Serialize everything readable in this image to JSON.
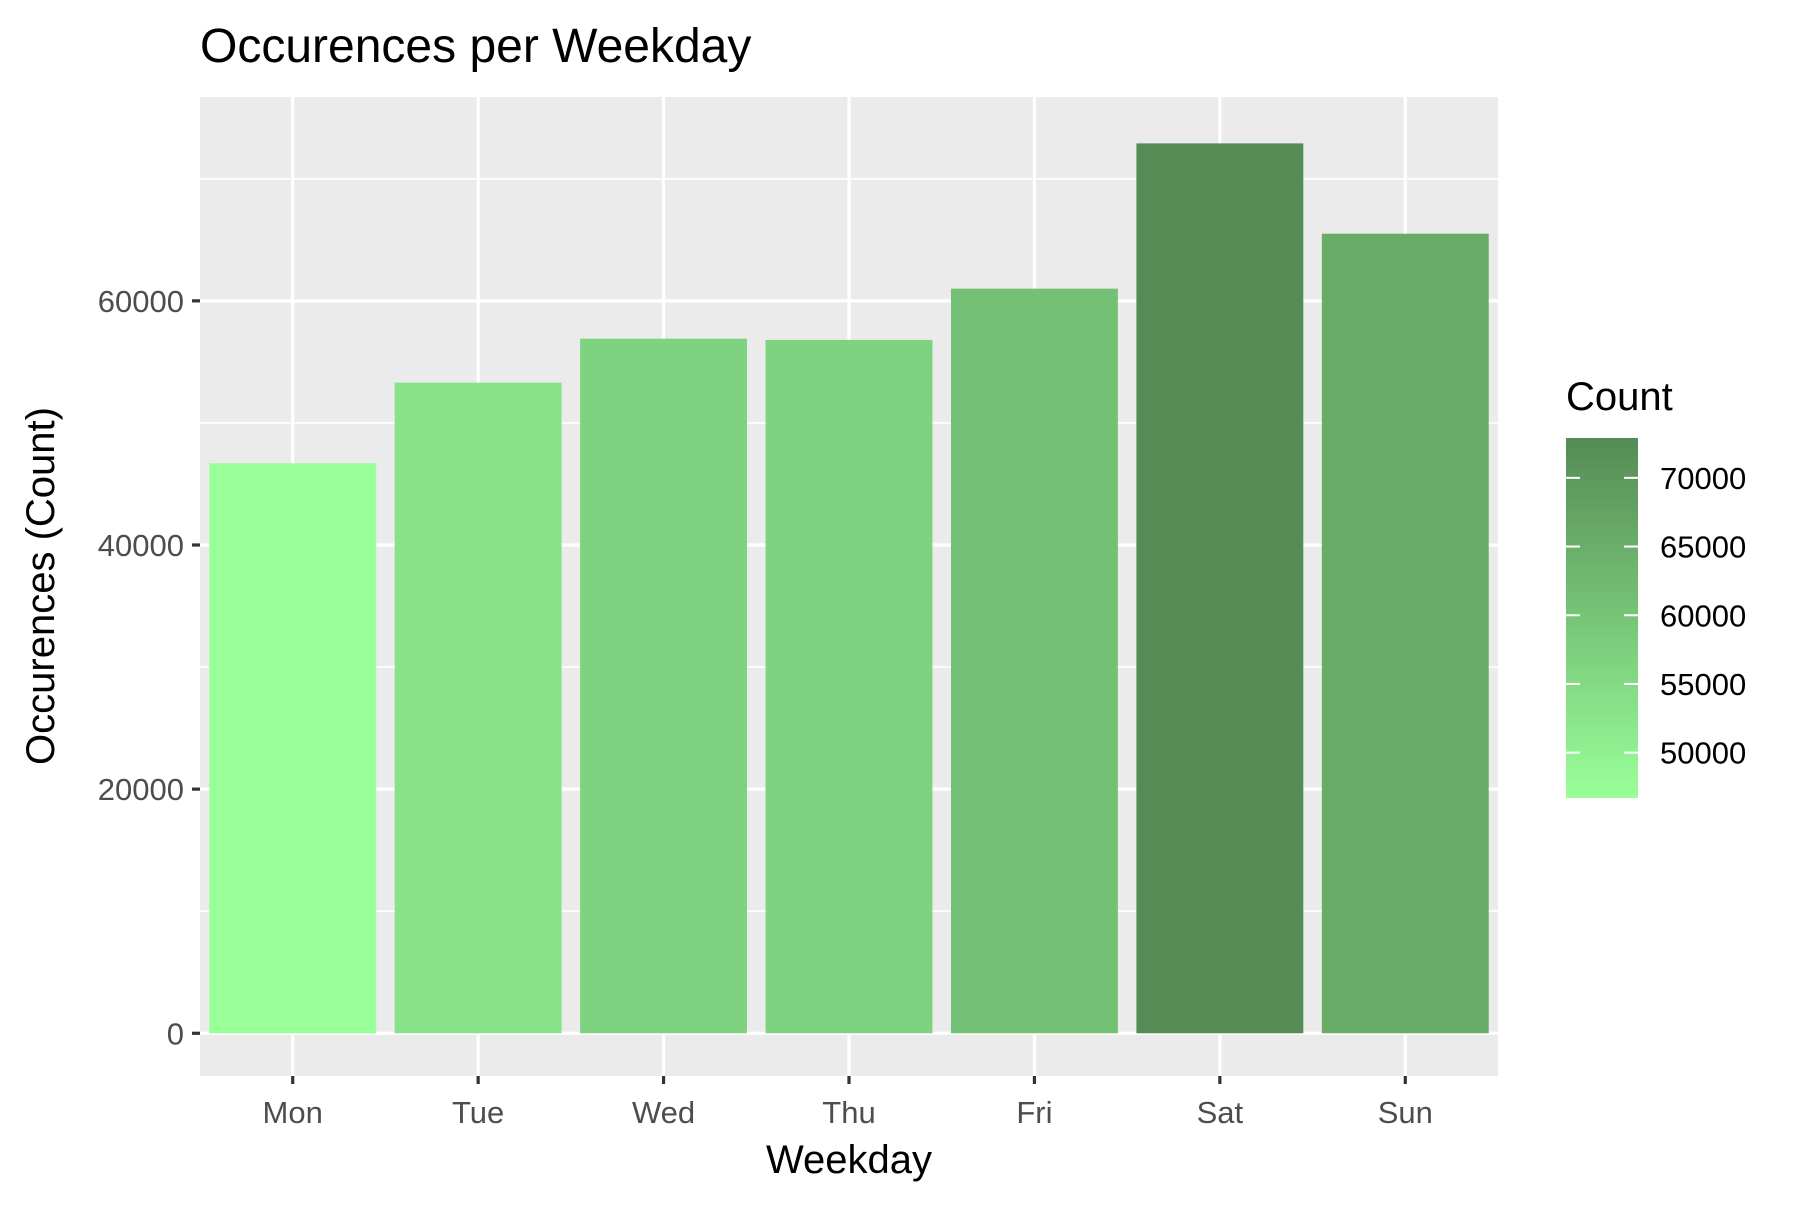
{
  "chart_data": {
    "type": "bar",
    "title": "Occurences per Weekday",
    "xlabel": "Weekday",
    "ylabel": "Occurences (Count)",
    "categories": [
      "Mon",
      "Tue",
      "Wed",
      "Thu",
      "Fri",
      "Sat",
      "Sun"
    ],
    "values": [
      46700,
      53300,
      56900,
      56800,
      61000,
      72900,
      65500
    ],
    "ylim": [
      -3500,
      76700
    ],
    "y_ticks": [
      0,
      20000,
      40000,
      60000
    ],
    "grid": true,
    "panel_background": "#EBEBEB",
    "legend": {
      "title": "Count",
      "placement": "right",
      "range": [
        46700,
        72900
      ],
      "ticks": [
        50000,
        55000,
        60000,
        65000,
        70000
      ],
      "low_color": "#99FF99",
      "high_color": "#558B55"
    }
  }
}
